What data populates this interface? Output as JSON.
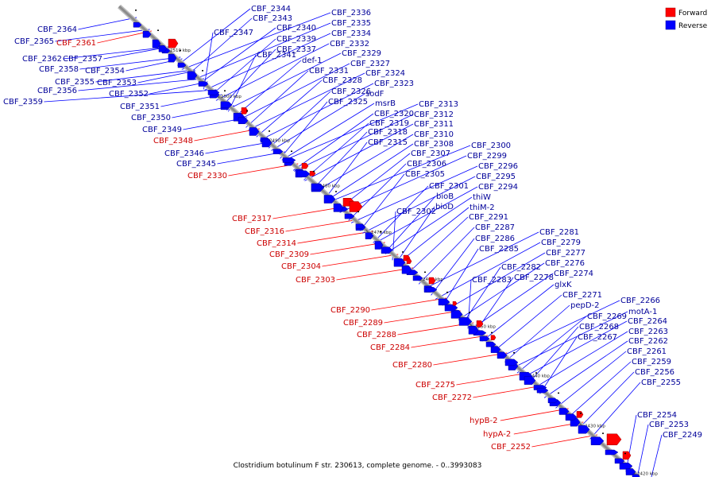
{
  "caption": "Clostridium botulinum F str. 230613, complete genome. - 0..3993083",
  "legend": {
    "forward_label": "Forward",
    "reverse_label": "Reverse",
    "forward_color": "#ff0000",
    "reverse_color": "#0000ff"
  },
  "colors": {
    "forward_text": "#cc0000",
    "reverse_text": "#000099",
    "forward_line": "#ff0000",
    "reverse_line": "#0000ff",
    "axis": "#8c8c8c"
  },
  "ticks": [
    "2510 kbp",
    "2500 kbp",
    "2490 kbp",
    "2480 kbp",
    "2470 kbp",
    "2460 kbp",
    "2450 kbp",
    "2440 kbp",
    "2430 kbp",
    "2420 kbp"
  ],
  "genes_reverse_left": [
    "CBF_2364",
    "CBF_2365",
    "CBF_2362",
    "CBF_2357",
    "CBF_2358",
    "CBF_2354",
    "CBF_2355",
    "CBF_2353",
    "CBF_2356",
    "CBF_2359",
    "CBF_2352",
    "CBF_2351",
    "CBF_2350",
    "CBF_2349",
    "CBF_2346",
    "CBF_2345"
  ],
  "genes_forward_left": [
    "CBF_2361",
    "CBF_2348",
    "CBF_2330",
    "CBF_2317",
    "CBF_2316",
    "CBF_2314",
    "CBF_2309",
    "CBF_2304",
    "CBF_2303",
    "CBF_2290",
    "CBF_2289",
    "CBF_2288",
    "CBF_2284",
    "CBF_2280",
    "CBF_2275",
    "CBF_2272",
    "hypB-2",
    "hypA-2",
    "CBF_2252"
  ],
  "genes_reverse_right": [
    "CBF_2344",
    "CBF_2343",
    "CBF_2347",
    "CBF_2340",
    "CBF_2339",
    "CBF_2337",
    "CBF_2341",
    "CBF_2336",
    "CBF_2335",
    "CBF_2334",
    "CBF_2332",
    "CBF_2329",
    "def-1",
    "CBF_2327",
    "CBF_2331",
    "CBF_2324",
    "CBF_2328",
    "CBF_2323",
    "CBF_2326",
    "sodF",
    "CBF_2325",
    "msrB",
    "CBF_2313",
    "CBF_2320",
    "CBF_2312",
    "CBF_2319",
    "CBF_2311",
    "CBF_2318",
    "CBF_2310",
    "CBF_2315",
    "CBF_2308",
    "CBF_2307",
    "CBF_2306",
    "CBF_2305",
    "CBF_2300",
    "CBF_2299",
    "CBF_2296",
    "CBF_2295",
    "CBF_2294",
    "CBF_2301",
    "bioB",
    "thiW",
    "bioD",
    "thiM-2",
    "CBF_2302",
    "CBF_2291",
    "CBF_2287",
    "CBF_2286",
    "CBF_2285",
    "CBF_2281",
    "CBF_2279",
    "CBF_2277",
    "CBF_2276",
    "CBF_2282",
    "CBF_2278",
    "CBF_2274",
    "CBF_2283",
    "glxK",
    "CBF_2271",
    "pepD-2",
    "CBF_2266",
    "motA-1",
    "CBF_2269",
    "CBF_2264",
    "CBF_2268",
    "CBF_2263",
    "CBF_2267",
    "CBF_2262",
    "CBF_2261",
    "CBF_2259",
    "CBF_2256",
    "CBF_2255",
    "CBF_2254",
    "CBF_2253",
    "CBF_2249"
  ]
}
